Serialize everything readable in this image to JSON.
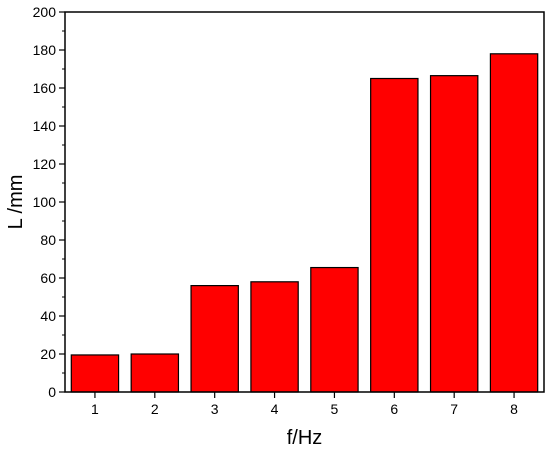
{
  "chart_data": {
    "type": "bar",
    "categories": [
      "1",
      "2",
      "3",
      "4",
      "5",
      "6",
      "7",
      "8"
    ],
    "values": [
      19.5,
      20,
      56,
      58,
      65.5,
      165,
      166.5,
      178
    ],
    "xlabel": "f/Hz",
    "ylabel": "L /mm",
    "ylim": [
      0,
      200
    ],
    "yticks": [
      0,
      20,
      40,
      60,
      80,
      100,
      120,
      140,
      160,
      180,
      200
    ],
    "grid": false,
    "legend": "none",
    "bar_color": "#ff0000",
    "edge_color": "#000000"
  }
}
